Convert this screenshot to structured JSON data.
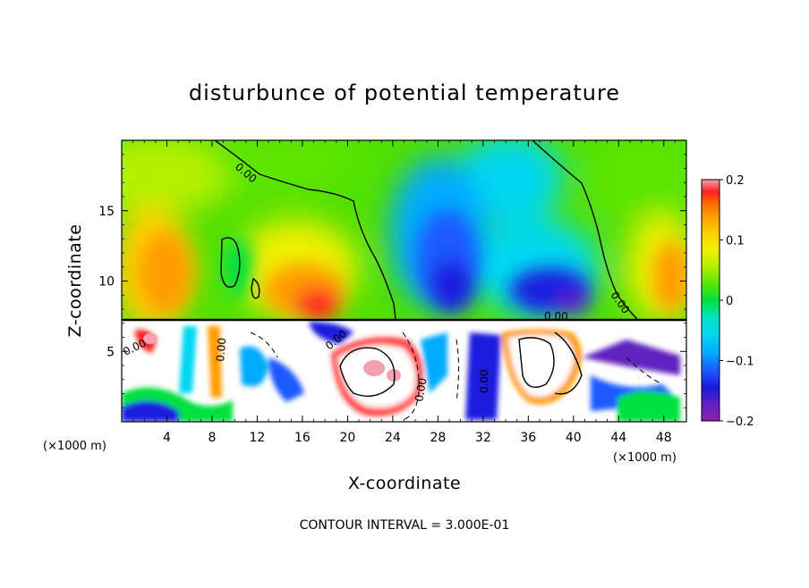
{
  "chart_data": {
    "type": "heatmap",
    "title": "disturbunce of potential temperature",
    "xlabel": "X-coordinate",
    "ylabel": "Z-coordinate",
    "x_unit": "(×1000 m)",
    "y_unit": "(×1000 m)",
    "xlim": [
      0,
      50
    ],
    "ylim": [
      0,
      20
    ],
    "x_ticks": [
      4,
      8,
      12,
      16,
      20,
      24,
      28,
      32,
      36,
      40,
      44,
      48
    ],
    "y_ticks": [
      5,
      10,
      15
    ],
    "colorbar": {
      "range": [
        -0.2,
        0.2
      ],
      "tick_values": [
        0.2,
        0.1,
        0,
        -0.1,
        -0.2
      ],
      "tick_labels": [
        "0.2",
        "0.1",
        "0",
        "−0.1",
        "−0.2"
      ],
      "colors": [
        "#f4a0b0",
        "#ff2020",
        "#ff6a00",
        "#ff9c00",
        "#ffcf00",
        "#f0f000",
        "#b4f000",
        "#5ce600",
        "#00e040",
        "#00e4c0",
        "#00d8f0",
        "#00aaff",
        "#1e5aff",
        "#1a1ae0",
        "#6020c0",
        "#9020b0"
      ]
    },
    "contour_interval_text": "CONTOUR INTERVAL = 3.000E-01",
    "contour_labels": [
      "0.00",
      "0.00",
      "0.00",
      "0.00",
      "0.00",
      "0.00",
      "0.00",
      "0.00"
    ],
    "features": [
      {
        "x": 3,
        "z": 13.5,
        "value": 0.08
      },
      {
        "x": 16.5,
        "z": 9.5,
        "value": 0.13
      },
      {
        "x": 30,
        "z": 11,
        "value": -0.17
      },
      {
        "x": 38,
        "z": 9.5,
        "value": -0.15
      },
      {
        "x": 46,
        "z": 11.5,
        "value": 0.09
      }
    ]
  }
}
